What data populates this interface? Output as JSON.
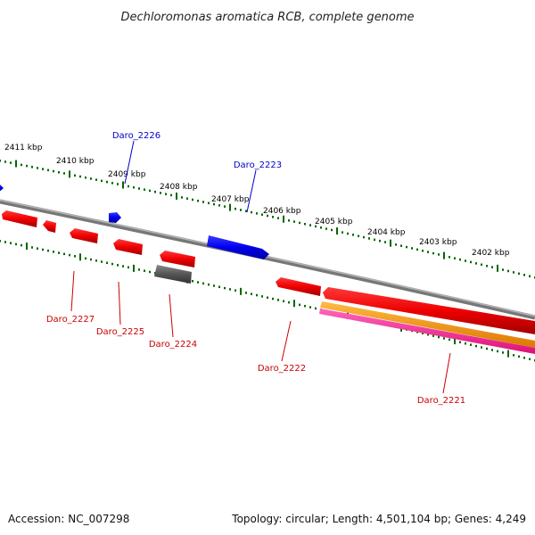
{
  "title": "Dechloromonas aromatica RCB, complete genome",
  "footer": {
    "accession_label": "Accession:",
    "accession": "NC_007298",
    "topology_label": "Topology:",
    "topology": "circular",
    "length_label": "Length:",
    "length": "4,501,104 bp",
    "genes_label": "Genes:",
    "genes": "4,249"
  },
  "ticks": [
    "2411 kbp",
    "2410 kbp",
    "2409 kbp",
    "2408 kbp",
    "2407 kbp",
    "2406 kbp",
    "2405 kbp",
    "2404 kbp",
    "2403 kbp",
    "2402 kbp"
  ],
  "genes": {
    "forward": [
      "Daro_2226",
      "Daro_2223"
    ],
    "reverse": [
      "Daro_2227",
      "Daro_2225",
      "Daro_2224",
      "Daro_2222",
      "Daro_2221"
    ]
  },
  "colors": {
    "backbone": "#888888",
    "forward_gene": "#0000ee",
    "reverse_gene": "#ee0000",
    "pseudo_gene": "#555555",
    "orange_track": "#ff9900",
    "magenta_track": "#ff3399",
    "tick": "#006600",
    "forward_label": "#0000cc",
    "reverse_label": "#cc0000"
  }
}
